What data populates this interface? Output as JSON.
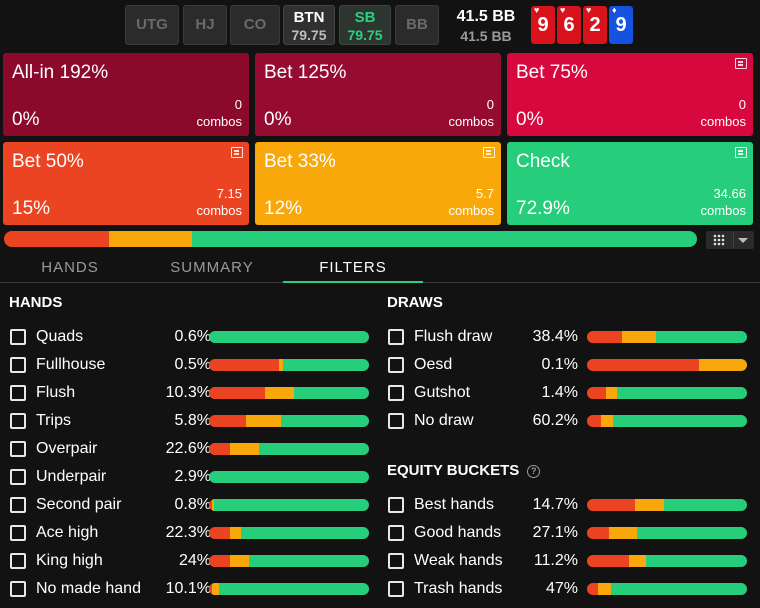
{
  "colors": {
    "allin": "#8b0a2b",
    "bet125": "#960c30",
    "bet75": "#d6083e",
    "bet50": "#ea4422",
    "bet33": "#f8a80a",
    "check": "#26cd7a"
  },
  "positions": [
    {
      "name": "UTG",
      "stack": ""
    },
    {
      "name": "HJ",
      "stack": ""
    },
    {
      "name": "CO",
      "stack": ""
    },
    {
      "name": "BTN",
      "stack": "79.75"
    },
    {
      "name": "SB",
      "stack": "79.75"
    },
    {
      "name": "BB",
      "stack": ""
    }
  ],
  "pot": {
    "main": "41.5 BB",
    "sub": "41.5 BB"
  },
  "board": [
    {
      "rank": "9",
      "suit": "♥",
      "color": "red"
    },
    {
      "rank": "6",
      "suit": "♥",
      "color": "red"
    },
    {
      "rank": "2",
      "suit": "♥",
      "color": "red"
    },
    {
      "rank": "9",
      "suit": "♦",
      "color": "blue"
    }
  ],
  "actions": [
    {
      "name": "All-in 192%",
      "pct": "0%",
      "combos": "0",
      "combos_label": "combos",
      "color": "#8b0a2b",
      "icon": false
    },
    {
      "name": "Bet 125%",
      "pct": "0%",
      "combos": "0",
      "combos_label": "combos",
      "color": "#960c30",
      "icon": false
    },
    {
      "name": "Bet 75%",
      "pct": "0%",
      "combos": "0",
      "combos_label": "combos",
      "color": "#d6083e",
      "icon": true
    },
    {
      "name": "Bet 50%",
      "pct": "15%",
      "combos": "7.15",
      "combos_label": "combos",
      "color": "#ea4422",
      "icon": true
    },
    {
      "name": "Bet 33%",
      "pct": "12%",
      "combos": "5.7",
      "combos_label": "combos",
      "color": "#f8a80a",
      "icon": true
    },
    {
      "name": "Check",
      "pct": "72.9%",
      "combos": "34.66",
      "combos_label": "combos",
      "color": "#26cd7a",
      "icon": true
    }
  ],
  "freq_bar": [
    {
      "color": "#ea4422",
      "value": 15.1
    },
    {
      "color": "#f8a80a",
      "value": 12.0
    },
    {
      "color": "#26cd7a",
      "value": 72.9
    }
  ],
  "tabs": [
    {
      "label": "HANDS",
      "active": false
    },
    {
      "label": "SUMMARY",
      "active": false
    },
    {
      "label": "FILTERS",
      "active": true
    }
  ],
  "hands": {
    "title": "HANDS",
    "rows": [
      {
        "label": "Quads",
        "pct": "0.6%",
        "bar": [
          0,
          0,
          100
        ]
      },
      {
        "label": "Fullhouse",
        "pct": "0.5%",
        "bar": [
          44,
          2,
          54
        ]
      },
      {
        "label": "Flush",
        "pct": "10.3%",
        "bar": [
          35,
          18,
          47
        ]
      },
      {
        "label": "Trips",
        "pct": "5.8%",
        "bar": [
          23,
          22,
          55
        ]
      },
      {
        "label": "Overpair",
        "pct": "22.6%",
        "bar": [
          13,
          18,
          69
        ]
      },
      {
        "label": "Underpair",
        "pct": "2.9%",
        "bar": [
          0,
          0,
          100
        ]
      },
      {
        "label": "Second pair",
        "pct": "0.8%",
        "bar": [
          2,
          1,
          97
        ]
      },
      {
        "label": "Ace high",
        "pct": "22.3%",
        "bar": [
          13,
          7,
          80
        ]
      },
      {
        "label": "King high",
        "pct": "24%",
        "bar": [
          13,
          12,
          75
        ]
      },
      {
        "label": "No made hand",
        "pct": "10.1%",
        "bar": [
          2,
          4,
          94
        ]
      }
    ]
  },
  "draws": {
    "title": "DRAWS",
    "rows": [
      {
        "label": "Flush draw",
        "pct": "38.4%",
        "bar": [
          22,
          21,
          57
        ]
      },
      {
        "label": "Oesd",
        "pct": "0.1%",
        "bar": [
          70,
          30,
          0
        ]
      },
      {
        "label": "Gutshot",
        "pct": "1.4%",
        "bar": [
          12,
          7,
          81
        ]
      },
      {
        "label": "No draw",
        "pct": "60.2%",
        "bar": [
          9,
          7,
          84
        ]
      }
    ]
  },
  "equity": {
    "title": "EQUITY BUCKETS",
    "help_icon": "question-circle-icon",
    "rows": [
      {
        "label": "Best hands",
        "pct": "14.7%",
        "bar": [
          30,
          18,
          52
        ]
      },
      {
        "label": "Good hands",
        "pct": "27.1%",
        "bar": [
          14,
          17,
          69
        ]
      },
      {
        "label": "Weak hands",
        "pct": "11.2%",
        "bar": [
          26,
          11,
          63
        ]
      },
      {
        "label": "Trash hands",
        "pct": "47%",
        "bar": [
          7,
          8,
          85
        ]
      }
    ]
  }
}
